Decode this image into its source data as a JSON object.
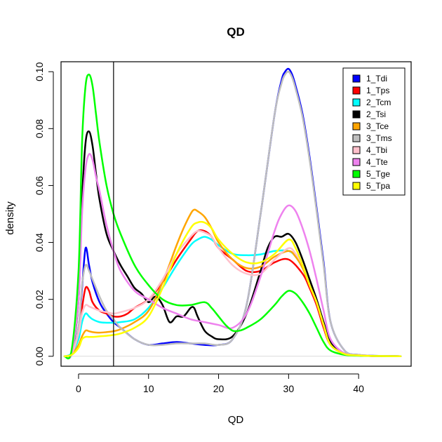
{
  "chart_data": {
    "type": "line",
    "title": "QD",
    "xlabel": "QD",
    "ylabel": "density",
    "xlim": [
      -2.5,
      47.5
    ],
    "ylim": [
      -0.0035,
      0.1035
    ],
    "xticks": [
      0,
      10,
      20,
      30,
      40
    ],
    "yticks": [
      0.0,
      0.02,
      0.04,
      0.06,
      0.08,
      0.1
    ],
    "xtick_labels": [
      "0",
      "10",
      "20",
      "30",
      "40"
    ],
    "ytick_labels": [
      "0.00",
      "0.02",
      "0.04",
      "0.06",
      "0.08",
      "0.10"
    ],
    "vline_x": 5,
    "grid": false,
    "legend_position": "top-right",
    "series": [
      {
        "name": "1_Tdi",
        "color": "#0000FF",
        "x": [
          -2,
          -1,
          0,
          0.5,
          1,
          1.5,
          2,
          3,
          4,
          5,
          6,
          8,
          10,
          12,
          14,
          16,
          18,
          20,
          22,
          24,
          26,
          28,
          29,
          29.5,
          30,
          30.5,
          31,
          32,
          33,
          34,
          35,
          36,
          38,
          40,
          42,
          44,
          46
        ],
        "y": [
          0,
          0.001,
          0.01,
          0.024,
          0.038,
          0.032,
          0.026,
          0.019,
          0.015,
          0.012,
          0.01,
          0.006,
          0.004,
          0.0045,
          0.005,
          0.0045,
          0.004,
          0.004,
          0.006,
          0.018,
          0.05,
          0.085,
          0.097,
          0.1,
          0.101,
          0.099,
          0.095,
          0.085,
          0.07,
          0.052,
          0.033,
          0.012,
          0.002,
          0.0005,
          0.0002,
          0.0001,
          0
        ]
      },
      {
        "name": "1_Tps",
        "color": "#FF0000",
        "x": [
          -2,
          -1,
          0,
          0.5,
          1,
          1.5,
          2,
          3,
          4,
          5,
          6,
          7,
          8,
          10,
          12,
          14,
          16,
          17,
          18,
          19,
          20,
          22,
          24,
          26,
          28,
          30,
          32,
          33,
          34,
          35,
          36,
          38,
          40,
          42,
          44,
          46
        ],
        "y": [
          0,
          0.001,
          0.008,
          0.017,
          0.024,
          0.023,
          0.019,
          0.016,
          0.015,
          0.014,
          0.014,
          0.015,
          0.017,
          0.02,
          0.026,
          0.034,
          0.041,
          0.044,
          0.044,
          0.042,
          0.038,
          0.034,
          0.03,
          0.03,
          0.033,
          0.034,
          0.029,
          0.024,
          0.018,
          0.01,
          0.004,
          0.0008,
          0.0003,
          0.0001,
          5e-05,
          0
        ]
      },
      {
        "name": "2_Tcm",
        "color": "#00FFFF",
        "x": [
          -2,
          -1,
          0,
          0.5,
          1,
          1.5,
          2,
          3,
          4,
          5,
          6,
          8,
          10,
          12,
          14,
          16,
          17,
          18,
          19,
          20,
          22,
          24,
          26,
          28,
          30,
          31,
          32,
          33,
          34,
          35,
          36,
          38,
          40,
          42,
          44,
          46
        ],
        "y": [
          0,
          0.001,
          0.006,
          0.012,
          0.015,
          0.014,
          0.013,
          0.012,
          0.0118,
          0.0118,
          0.012,
          0.013,
          0.017,
          0.024,
          0.032,
          0.039,
          0.041,
          0.042,
          0.041,
          0.039,
          0.036,
          0.0355,
          0.0358,
          0.037,
          0.037,
          0.035,
          0.031,
          0.025,
          0.019,
          0.011,
          0.004,
          0.0008,
          0.0003,
          0.0001,
          5e-05,
          0
        ]
      },
      {
        "name": "2_Tsi",
        "color": "#000000",
        "x": [
          -2,
          -1,
          0,
          0.5,
          1,
          1.5,
          2,
          2.5,
          3,
          4,
          5,
          6,
          7,
          8,
          9,
          10,
          11,
          12,
          13,
          14,
          15,
          16,
          16.5,
          17,
          18,
          19,
          20,
          22,
          24,
          26,
          27,
          28,
          29,
          30,
          31,
          32,
          33,
          34,
          35,
          36,
          38,
          40,
          42,
          44,
          46
        ],
        "y": [
          0,
          0.001,
          0.02,
          0.055,
          0.075,
          0.079,
          0.074,
          0.064,
          0.055,
          0.043,
          0.037,
          0.032,
          0.028,
          0.024,
          0.022,
          0.019,
          0.021,
          0.018,
          0.012,
          0.014,
          0.014,
          0.017,
          0.017,
          0.014,
          0.009,
          0.007,
          0.006,
          0.007,
          0.015,
          0.03,
          0.038,
          0.042,
          0.042,
          0.043,
          0.04,
          0.034,
          0.027,
          0.02,
          0.012,
          0.005,
          0.001,
          0.0003,
          0.0001,
          5e-05,
          0
        ]
      },
      {
        "name": "3_Tce",
        "color": "#FFA500",
        "x": [
          -2,
          -1,
          0,
          0.5,
          1,
          1.5,
          2,
          3,
          4,
          5,
          6,
          8,
          10,
          12,
          14,
          15,
          16,
          16.5,
          17,
          18,
          19,
          20,
          22,
          24,
          26,
          28,
          30,
          31,
          32,
          33,
          34,
          35,
          36,
          38,
          40,
          42,
          44,
          46
        ],
        "y": [
          0,
          0.0005,
          0.004,
          0.007,
          0.009,
          0.0088,
          0.0085,
          0.0083,
          0.0085,
          0.0088,
          0.0095,
          0.012,
          0.016,
          0.026,
          0.039,
          0.045,
          0.05,
          0.0515,
          0.051,
          0.049,
          0.045,
          0.04,
          0.034,
          0.031,
          0.0315,
          0.035,
          0.037,
          0.035,
          0.031,
          0.025,
          0.019,
          0.011,
          0.004,
          0.0008,
          0.0003,
          0.0001,
          5e-05,
          0
        ]
      },
      {
        "name": "3_Tms",
        "color": "#BEBEBE",
        "x": [
          -2,
          -1,
          0,
          0.5,
          1,
          1.5,
          2,
          3,
          4,
          5,
          6,
          8,
          10,
          12,
          14,
          16,
          18,
          20,
          22,
          24,
          26,
          28,
          29,
          29.5,
          30,
          30.5,
          31,
          32,
          33,
          34,
          35,
          36,
          38,
          40,
          42,
          44,
          46
        ],
        "y": [
          0,
          0.001,
          0.01,
          0.025,
          0.032,
          0.03,
          0.027,
          0.021,
          0.016,
          0.013,
          0.01,
          0.006,
          0.004,
          0.004,
          0.0045,
          0.0045,
          0.0045,
          0.004,
          0.006,
          0.018,
          0.05,
          0.085,
          0.096,
          0.099,
          0.1,
          0.098,
          0.094,
          0.084,
          0.069,
          0.051,
          0.032,
          0.012,
          0.002,
          0.0005,
          0.0002,
          0.0001,
          0
        ]
      },
      {
        "name": "4_Tbi",
        "color": "#FFC0CB",
        "x": [
          -2,
          -1,
          0,
          0.5,
          1,
          1.5,
          2,
          3,
          4,
          5,
          6,
          8,
          10,
          12,
          14,
          16,
          17,
          18,
          19,
          20,
          22,
          24,
          26,
          28,
          30,
          31,
          32,
          33,
          34,
          35,
          36,
          38,
          40,
          42,
          44,
          46
        ],
        "y": [
          0,
          0.0008,
          0.008,
          0.015,
          0.018,
          0.0175,
          0.017,
          0.016,
          0.0155,
          0.015,
          0.0155,
          0.017,
          0.02,
          0.027,
          0.036,
          0.042,
          0.044,
          0.0435,
          0.042,
          0.038,
          0.032,
          0.029,
          0.029,
          0.034,
          0.038,
          0.036,
          0.032,
          0.025,
          0.019,
          0.011,
          0.004,
          0.0008,
          0.0003,
          0.0001,
          5e-05,
          0
        ]
      },
      {
        "name": "4_Tte",
        "color": "#EE82EE",
        "x": [
          -2,
          -1,
          0,
          0.5,
          1,
          1.5,
          2,
          2.5,
          3,
          4,
          5,
          6,
          8,
          10,
          12,
          14,
          16,
          18,
          20,
          22,
          24,
          26,
          28,
          29,
          30,
          31,
          32,
          33,
          34,
          35,
          36,
          38,
          40,
          42,
          44,
          46
        ],
        "y": [
          0,
          0.001,
          0.02,
          0.05,
          0.066,
          0.071,
          0.069,
          0.063,
          0.058,
          0.046,
          0.037,
          0.03,
          0.023,
          0.02,
          0.017,
          0.015,
          0.013,
          0.012,
          0.011,
          0.01,
          0.015,
          0.028,
          0.044,
          0.05,
          0.053,
          0.051,
          0.045,
          0.037,
          0.027,
          0.016,
          0.006,
          0.001,
          0.0003,
          0.0001,
          5e-05,
          0
        ]
      },
      {
        "name": "5_Tge",
        "color": "#00FF00",
        "x": [
          -2,
          -1,
          0,
          0.5,
          1,
          1.5,
          2,
          2.5,
          3,
          4,
          5,
          6,
          8,
          10,
          12,
          14,
          16,
          18,
          19,
          20,
          21,
          22,
          23,
          24,
          26,
          28,
          29,
          30,
          31,
          32,
          33,
          34,
          35,
          36,
          38,
          40,
          42,
          44,
          46
        ],
        "y": [
          0,
          0.002,
          0.03,
          0.075,
          0.095,
          0.099,
          0.095,
          0.085,
          0.075,
          0.06,
          0.05,
          0.043,
          0.032,
          0.025,
          0.02,
          0.018,
          0.018,
          0.019,
          0.017,
          0.014,
          0.011,
          0.009,
          0.009,
          0.01,
          0.013,
          0.018,
          0.021,
          0.023,
          0.022,
          0.019,
          0.015,
          0.01,
          0.005,
          0.002,
          0.0005,
          0.0002,
          0.0001,
          5e-05,
          0
        ]
      },
      {
        "name": "5_Tpa",
        "color": "#FFFF00",
        "x": [
          -2,
          -1,
          0,
          0.5,
          1,
          1.5,
          2,
          3,
          4,
          5,
          6,
          8,
          10,
          12,
          14,
          16,
          17,
          18,
          19,
          20,
          22,
          24,
          26,
          28,
          30,
          31,
          32,
          33,
          34,
          35,
          36,
          38,
          40,
          42,
          44,
          46
        ],
        "y": [
          0,
          0.0005,
          0.003,
          0.006,
          0.0068,
          0.0068,
          0.0068,
          0.007,
          0.0072,
          0.0075,
          0.008,
          0.01,
          0.014,
          0.024,
          0.036,
          0.045,
          0.047,
          0.047,
          0.045,
          0.041,
          0.036,
          0.033,
          0.033,
          0.036,
          0.041,
          0.038,
          0.032,
          0.025,
          0.019,
          0.011,
          0.004,
          0.0008,
          0.0003,
          0.0001,
          5e-05,
          0
        ]
      }
    ]
  }
}
